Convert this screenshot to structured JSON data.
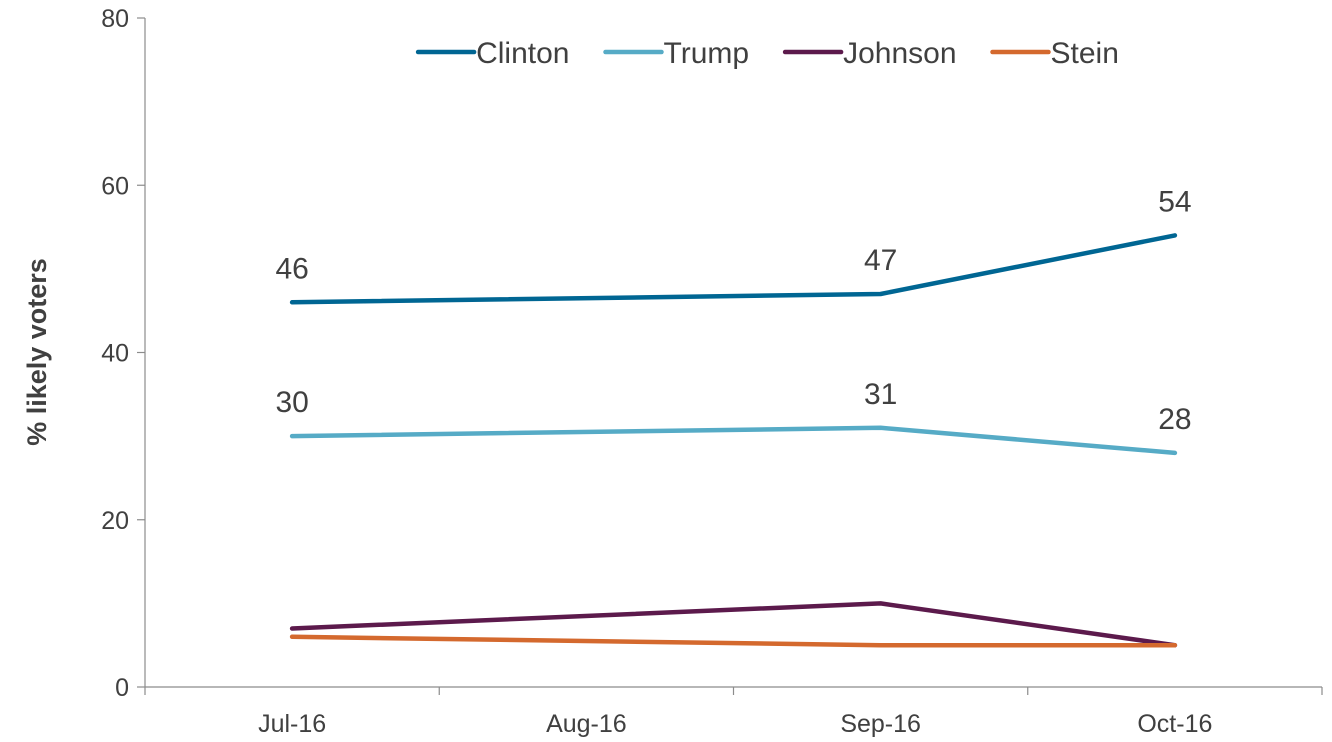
{
  "chart_data": {
    "type": "line",
    "categories": [
      "Jul-16",
      "Aug-16",
      "Sep-16",
      "Oct-16"
    ],
    "x": [
      "Jul-16",
      "Sep-16",
      "Oct-16"
    ],
    "series": [
      {
        "name": "Clinton",
        "color": "#006693",
        "values": [
          46,
          47,
          54
        ],
        "labels": [
          "46",
          "47",
          "54"
        ]
      },
      {
        "name": "Trump",
        "color": "#56ABC6",
        "values": [
          30,
          31,
          28
        ],
        "labels": [
          "30",
          "31",
          "28"
        ]
      },
      {
        "name": "Johnson",
        "color": "#5C1A4C",
        "values": [
          7,
          10,
          5
        ],
        "labels": []
      },
      {
        "name": "Stein",
        "color": "#D4692E",
        "values": [
          6,
          5,
          5
        ],
        "labels": []
      }
    ],
    "title": "",
    "xlabel": "",
    "ylabel": "% likely voters",
    "ylim": [
      0,
      80
    ],
    "yticks": [
      "0",
      "20",
      "40",
      "60",
      "80"
    ],
    "grid": false,
    "legend_position": "top"
  }
}
